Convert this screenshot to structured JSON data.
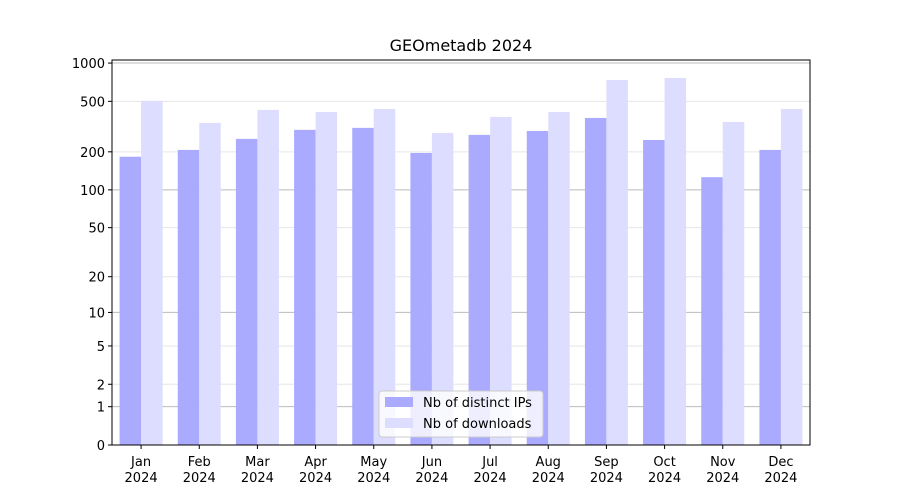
{
  "chart_data": {
    "type": "bar",
    "title": "GEOmetadb 2024",
    "categories": [
      "Jan\n2024",
      "Feb\n2024",
      "Mar\n2024",
      "Apr\n2024",
      "May\n2024",
      "Jun\n2024",
      "Jul\n2024",
      "Aug\n2024",
      "Sep\n2024",
      "Oct\n2024",
      "Nov\n2024",
      "Dec\n2024"
    ],
    "series": [
      {
        "name": "Nb of distinct IPs",
        "color": "#aaaaff",
        "values": [
          183,
          207,
          253,
          298,
          309,
          196,
          272,
          292,
          370,
          248,
          126,
          207
        ]
      },
      {
        "name": "Nb of downloads",
        "color": "#ddddff",
        "values": [
          504,
          338,
          428,
          412,
          435,
          282,
          377,
          412,
          736,
          763,
          344,
          435
        ]
      }
    ],
    "yscale": "log1p",
    "ylim": [
      0,
      1057
    ],
    "yticks": [
      0,
      1,
      2,
      5,
      10,
      20,
      50,
      100,
      200,
      500,
      1000
    ],
    "grid": true,
    "legend": "lower center"
  }
}
